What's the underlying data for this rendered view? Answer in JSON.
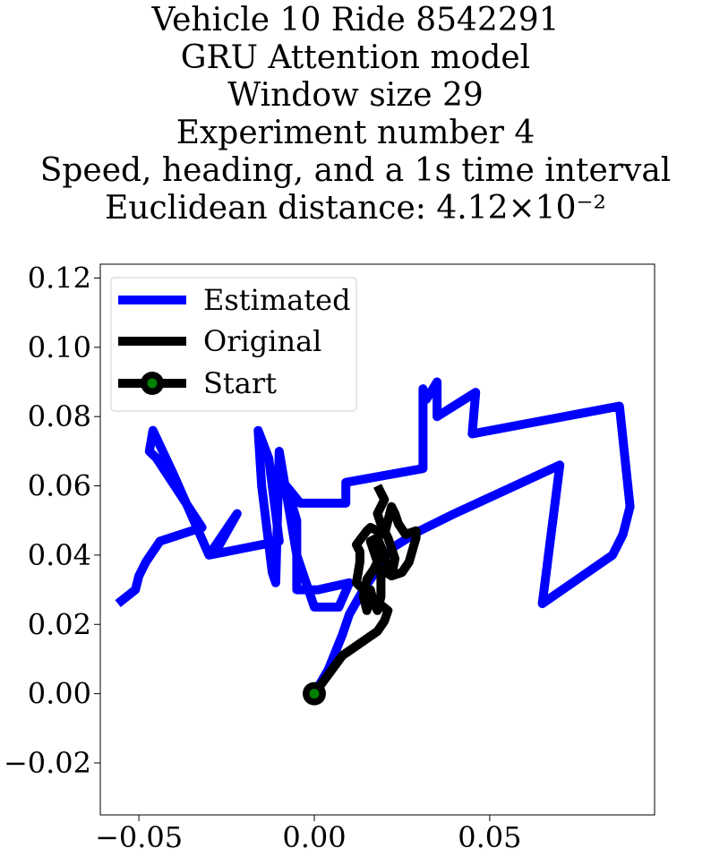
{
  "chart_data": {
    "type": "line",
    "title_lines": [
      "Vehicle 10 Ride 8542291",
      "GRU Attention model",
      "Window size 29",
      "Experiment number 4",
      "Speed, heading, and a 1s time interval",
      "Euclidean distance: 4.12×10⁻²"
    ],
    "xlim": [
      -0.061,
      0.097
    ],
    "ylim": [
      -0.035,
      0.124
    ],
    "xticks": [
      -0.05,
      0.0,
      0.05
    ],
    "xtick_labels": [
      "−0.05",
      "0.00",
      "0.05"
    ],
    "yticks": [
      -0.02,
      0.0,
      0.02,
      0.04,
      0.06,
      0.08,
      0.1,
      0.12
    ],
    "ytick_labels": [
      "−0.02",
      "0.00",
      "0.02",
      "0.04",
      "0.06",
      "0.08",
      "0.10",
      "0.12"
    ],
    "grid": false,
    "legend": {
      "placement": "upper-left",
      "entries": [
        "Estimated",
        "Original",
        "Start"
      ]
    },
    "colors": {
      "estimated": "#0000ff",
      "original": "#000000",
      "start_marker_fill": "#008000",
      "start_marker_edge": "#000000"
    },
    "series": [
      {
        "name": "Estimated",
        "points": [
          [
            0.0,
            0.0
          ],
          [
            0.004,
            0.007
          ],
          [
            0.008,
            0.017
          ],
          [
            0.01,
            0.023
          ],
          [
            0.014,
            0.03
          ],
          [
            0.018,
            0.036
          ],
          [
            0.022,
            0.042
          ],
          [
            0.03,
            0.047
          ],
          [
            0.04,
            0.052
          ],
          [
            0.055,
            0.059
          ],
          [
            0.07,
            0.066
          ],
          [
            0.065,
            0.026
          ],
          [
            0.085,
            0.04
          ],
          [
            0.088,
            0.046
          ],
          [
            0.09,
            0.054
          ],
          [
            0.087,
            0.083
          ],
          [
            0.045,
            0.075
          ],
          [
            0.046,
            0.087
          ],
          [
            0.035,
            0.08
          ],
          [
            0.035,
            0.09
          ],
          [
            0.032,
            0.085
          ],
          [
            0.031,
            0.088
          ],
          [
            0.031,
            0.065
          ],
          [
            0.009,
            0.061
          ],
          [
            0.009,
            0.055
          ],
          [
            -0.004,
            0.055
          ],
          [
            -0.008,
            0.06
          ],
          [
            -0.005,
            0.05
          ],
          [
            -0.005,
            0.03
          ],
          [
            0.001,
            0.03
          ],
          [
            0.01,
            0.032
          ],
          [
            0.007,
            0.025
          ],
          [
            0.0,
            0.025
          ],
          [
            -0.005,
            0.04
          ],
          [
            -0.01,
            0.07
          ],
          [
            -0.011,
            0.032
          ],
          [
            -0.012,
            0.035
          ],
          [
            -0.015,
            0.06
          ],
          [
            -0.016,
            0.076
          ],
          [
            -0.013,
            0.068
          ],
          [
            -0.01,
            0.044
          ],
          [
            -0.03,
            0.04
          ],
          [
            -0.022,
            0.052
          ],
          [
            -0.027,
            0.043
          ],
          [
            -0.03,
            0.04
          ],
          [
            -0.04,
            0.063
          ],
          [
            -0.046,
            0.076
          ],
          [
            -0.047,
            0.07
          ],
          [
            -0.045,
            0.068
          ],
          [
            -0.032,
            0.048
          ],
          [
            -0.044,
            0.044
          ],
          [
            -0.048,
            0.038
          ],
          [
            -0.05,
            0.034
          ],
          [
            -0.051,
            0.03
          ],
          [
            -0.056,
            0.026
          ]
        ]
      },
      {
        "name": "Original",
        "points": [
          [
            0.0,
            0.0
          ],
          [
            0.008,
            0.011
          ],
          [
            0.018,
            0.018
          ],
          [
            0.02,
            0.021
          ],
          [
            0.021,
            0.024
          ],
          [
            0.016,
            0.028
          ],
          [
            0.012,
            0.032
          ],
          [
            0.013,
            0.038
          ],
          [
            0.013,
            0.041
          ],
          [
            0.012,
            0.043
          ],
          [
            0.015,
            0.047
          ],
          [
            0.016,
            0.048
          ],
          [
            0.018,
            0.047
          ],
          [
            0.02,
            0.046
          ],
          [
            0.021,
            0.05
          ],
          [
            0.022,
            0.054
          ],
          [
            0.023,
            0.052
          ],
          [
            0.024,
            0.049
          ],
          [
            0.026,
            0.046
          ],
          [
            0.029,
            0.047
          ],
          [
            0.029,
            0.045
          ],
          [
            0.027,
            0.038
          ],
          [
            0.025,
            0.035
          ],
          [
            0.022,
            0.034
          ],
          [
            0.019,
            0.036
          ],
          [
            0.019,
            0.032
          ],
          [
            0.019,
            0.028
          ],
          [
            0.018,
            0.024
          ],
          [
            0.017,
            0.026
          ],
          [
            0.016,
            0.03
          ],
          [
            0.015,
            0.024
          ],
          [
            0.014,
            0.028
          ],
          [
            0.015,
            0.033
          ],
          [
            0.017,
            0.036
          ],
          [
            0.018,
            0.038
          ],
          [
            0.017,
            0.041
          ],
          [
            0.016,
            0.044
          ],
          [
            0.018,
            0.045
          ],
          [
            0.02,
            0.04
          ],
          [
            0.021,
            0.036
          ],
          [
            0.022,
            0.034
          ],
          [
            0.023,
            0.039
          ],
          [
            0.021,
            0.045
          ],
          [
            0.019,
            0.049
          ],
          [
            0.018,
            0.052
          ],
          [
            0.02,
            0.056
          ],
          [
            0.019,
            0.058
          ],
          [
            0.018,
            0.06
          ]
        ]
      }
    ],
    "start_point": [
      0.0,
      0.0
    ]
  }
}
